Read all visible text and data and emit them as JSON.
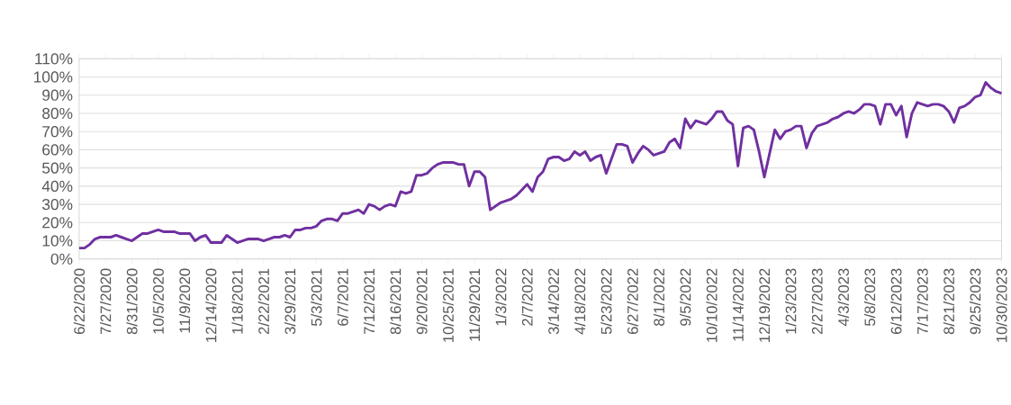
{
  "chart_data": {
    "type": "line",
    "categories": [
      "6/22/2020",
      null,
      null,
      null,
      null,
      "7/27/2020",
      null,
      null,
      null,
      null,
      "8/31/2020",
      null,
      null,
      null,
      null,
      "10/5/2020",
      null,
      null,
      null,
      null,
      "11/9/2020",
      null,
      null,
      null,
      null,
      "12/14/2020",
      null,
      null,
      null,
      null,
      "1/18/2021",
      null,
      null,
      null,
      null,
      "2/22/2021",
      null,
      null,
      null,
      null,
      "3/29/2021",
      null,
      null,
      null,
      null,
      "5/3/2021",
      null,
      null,
      null,
      null,
      "6/7/2021",
      null,
      null,
      null,
      null,
      "7/12/2021",
      null,
      null,
      null,
      null,
      "8/16/2021",
      null,
      null,
      null,
      null,
      "9/20/2021",
      null,
      null,
      null,
      null,
      "10/25/2021",
      null,
      null,
      null,
      null,
      "11/29/2021",
      null,
      null,
      null,
      null,
      "1/3/2022",
      null,
      null,
      null,
      null,
      "2/7/2022",
      null,
      null,
      null,
      null,
      "3/14/2022",
      null,
      null,
      null,
      null,
      "4/18/2022",
      null,
      null,
      null,
      null,
      "5/23/2022",
      null,
      null,
      null,
      null,
      "6/27/2022",
      null,
      null,
      null,
      null,
      "8/1/2022",
      null,
      null,
      null,
      null,
      "9/5/2022",
      null,
      null,
      null,
      null,
      "10/10/2022",
      null,
      null,
      null,
      null,
      "11/14/2022",
      null,
      null,
      null,
      null,
      "12/19/2022",
      null,
      null,
      null,
      null,
      "1/23/2023",
      null,
      null,
      null,
      null,
      "2/27/2023",
      null,
      null,
      null,
      null,
      "4/3/2023",
      null,
      null,
      null,
      null,
      "5/8/2023",
      null,
      null,
      null,
      null,
      "6/12/2023",
      null,
      null,
      null,
      null,
      "7/17/2023",
      null,
      null,
      null,
      null,
      "8/21/2023",
      null,
      null,
      null,
      null,
      "9/25/2023",
      null,
      null,
      null,
      null,
      "10/30/2023"
    ],
    "series": [
      {
        "color": "#7030a0",
        "values": [
          6,
          6,
          8,
          11,
          12,
          12,
          12,
          13,
          12,
          11,
          10,
          12,
          14,
          14,
          15,
          16,
          15,
          15,
          15,
          14,
          14,
          14,
          10,
          12,
          13,
          9,
          9,
          9,
          13,
          11,
          9,
          10,
          11,
          11,
          11,
          10,
          11,
          12,
          12,
          13,
          12,
          16,
          16,
          17,
          17,
          18,
          21,
          22,
          22,
          21,
          25,
          25,
          26,
          27,
          25,
          30,
          29,
          27,
          29,
          30,
          29,
          37,
          36,
          37,
          46,
          46,
          47,
          50,
          52,
          53,
          53,
          53,
          52,
          52,
          40,
          48,
          48,
          45,
          27,
          29,
          31,
          32,
          33,
          35,
          38,
          41,
          37,
          45,
          48,
          55,
          56,
          56,
          54,
          55,
          59,
          57,
          59,
          54,
          56,
          57,
          47,
          55,
          63,
          63,
          62,
          53,
          58,
          62,
          60,
          57,
          58,
          59,
          64,
          66,
          61,
          77,
          72,
          76,
          75,
          74,
          77,
          81,
          81,
          76,
          74,
          51,
          72,
          73,
          71,
          59,
          45,
          58,
          71,
          66,
          70,
          71,
          73,
          73,
          61,
          69,
          73,
          74,
          75,
          77,
          78,
          80,
          81,
          80,
          82,
          85,
          85,
          84,
          74,
          85,
          85,
          79,
          84,
          67,
          80,
          86,
          85,
          84,
          85,
          85,
          84,
          81,
          75,
          83,
          84,
          86,
          89,
          90,
          97,
          94,
          92,
          91
        ]
      }
    ],
    "ylim": [
      0,
      110
    ],
    "yticks": [
      {
        "value": 0,
        "label": "0%"
      },
      {
        "value": 10,
        "label": "10%"
      },
      {
        "value": 20,
        "label": "20%"
      },
      {
        "value": 30,
        "label": "30%"
      },
      {
        "value": 40,
        "label": "40%"
      },
      {
        "value": 50,
        "label": "50%"
      },
      {
        "value": 60,
        "label": "60%"
      },
      {
        "value": 70,
        "label": "70%"
      },
      {
        "value": 80,
        "label": "80%"
      },
      {
        "value": 90,
        "label": "90%"
      },
      {
        "value": 100,
        "label": "100%"
      },
      {
        "value": 110,
        "label": "110%"
      }
    ],
    "grid": "y",
    "legend": false,
    "marker": "none",
    "line_style": "solid"
  }
}
